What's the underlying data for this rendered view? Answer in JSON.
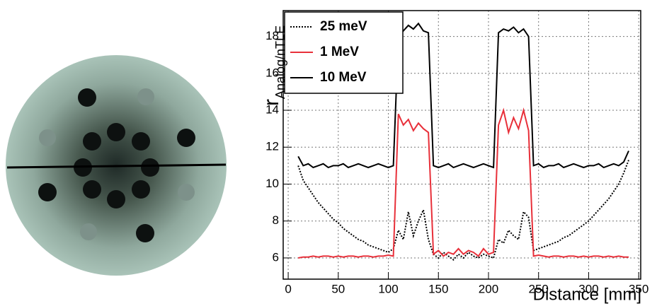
{
  "chart_data": {
    "type": "line",
    "y_label": "r",
    "y_label_subscript": "Analog/nTLE",
    "x_label": "Distance [mm]",
    "x": [
      10,
      15,
      20,
      25,
      30,
      35,
      40,
      45,
      50,
      55,
      60,
      65,
      70,
      75,
      80,
      85,
      90,
      95,
      100,
      105,
      110,
      115,
      120,
      125,
      130,
      135,
      140,
      145,
      150,
      155,
      160,
      165,
      170,
      175,
      180,
      185,
      190,
      195,
      200,
      205,
      210,
      215,
      220,
      225,
      230,
      235,
      240,
      245,
      250,
      255,
      260,
      265,
      270,
      275,
      280,
      285,
      290,
      295,
      300,
      305,
      310,
      315,
      320,
      325,
      330,
      335,
      340
    ],
    "series": [
      {
        "name": "25 meV",
        "color": "#000000",
        "dash": "dotted",
        "values": [
          11.0,
          10.2,
          9.8,
          9.4,
          9.0,
          8.7,
          8.4,
          8.1,
          7.9,
          7.6,
          7.4,
          7.2,
          7.0,
          6.9,
          6.7,
          6.6,
          6.5,
          6.4,
          6.3,
          6.5,
          7.5,
          7.0,
          8.5,
          7.2,
          8.0,
          8.6,
          7.0,
          6.2,
          6.0,
          6.3,
          6.1,
          5.9,
          6.2,
          6.0,
          6.3,
          6.1,
          6.0,
          6.2,
          6.1,
          6.0,
          7.0,
          6.8,
          7.5,
          7.2,
          7.0,
          8.5,
          8.2,
          6.4,
          6.5,
          6.6,
          6.7,
          6.8,
          6.9,
          7.1,
          7.2,
          7.4,
          7.6,
          7.8,
          8.0,
          8.3,
          8.6,
          8.9,
          9.2,
          9.6,
          10.0,
          10.6,
          11.3
        ]
      },
      {
        "name": "1 MeV",
        "color": "#e8303a",
        "dash": "solid",
        "values": [
          6.0,
          6.05,
          6.05,
          6.1,
          6.05,
          6.1,
          6.1,
          6.05,
          6.1,
          6.05,
          6.1,
          6.1,
          6.05,
          6.1,
          6.1,
          6.05,
          6.1,
          6.1,
          6.15,
          6.1,
          13.8,
          13.2,
          13.5,
          12.9,
          13.3,
          13.0,
          12.8,
          6.2,
          6.4,
          6.1,
          6.3,
          6.2,
          6.5,
          6.2,
          6.4,
          6.3,
          6.1,
          6.5,
          6.2,
          6.3,
          13.2,
          14.0,
          12.8,
          13.6,
          13.0,
          14.0,
          12.9,
          6.1,
          6.15,
          6.1,
          6.05,
          6.1,
          6.1,
          6.05,
          6.1,
          6.1,
          6.05,
          6.1,
          6.05,
          6.1,
          6.1,
          6.05,
          6.1,
          6.05,
          6.1,
          6.05,
          6.05
        ]
      },
      {
        "name": "10 MeV",
        "color": "#000000",
        "dash": "solid",
        "values": [
          11.5,
          11.0,
          11.1,
          10.9,
          11.0,
          11.1,
          10.9,
          11.0,
          11.0,
          11.1,
          10.9,
          11.0,
          11.1,
          11.0,
          10.9,
          11.0,
          11.1,
          11.0,
          10.9,
          11.0,
          18.0,
          18.3,
          18.6,
          18.4,
          18.7,
          18.3,
          18.2,
          11.0,
          10.9,
          11.0,
          11.1,
          10.9,
          11.0,
          11.1,
          11.0,
          10.9,
          11.0,
          11.1,
          11.0,
          10.9,
          18.2,
          18.4,
          18.3,
          18.5,
          18.2,
          18.4,
          18.0,
          11.0,
          11.1,
          10.9,
          11.0,
          11.0,
          11.1,
          10.9,
          11.0,
          11.1,
          11.0,
          10.9,
          11.0,
          11.0,
          11.1,
          10.9,
          11.0,
          11.1,
          11.0,
          11.2,
          11.8
        ]
      }
    ],
    "xlim": [
      -5,
      352
    ],
    "ylim": [
      4.85,
      19.4
    ],
    "xticks": [
      0,
      50,
      100,
      150,
      200,
      250,
      300,
      350
    ],
    "yticks": [
      6,
      8,
      10,
      12,
      14,
      16,
      18
    ],
    "grid": true,
    "legend": "upper left"
  }
}
